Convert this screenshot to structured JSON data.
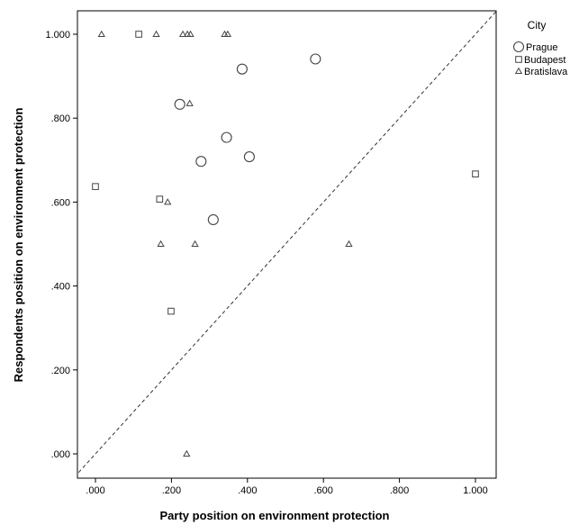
{
  "chart_data": {
    "type": "scatter",
    "title": "",
    "xlabel": "Party position on environment protection",
    "ylabel": "Respondents position on environment protection",
    "xlim": [
      -0.04,
      1.05
    ],
    "ylim": [
      -0.05,
      1.06
    ],
    "x_ticks": [
      0,
      0.2,
      0.4,
      0.6,
      0.8,
      1.0
    ],
    "y_ticks": [
      0,
      0.2,
      0.4,
      0.6,
      0.8,
      1.0
    ],
    "x_tick_labels": [
      ".000",
      ".200",
      ".400",
      ".600",
      ".800",
      "1.000"
    ],
    "y_tick_labels": [
      ".000",
      ".200",
      ".400",
      ".600",
      ".800",
      "1.000"
    ],
    "grid": false,
    "reference_line": "y = x (dashed diagonal)",
    "legend": {
      "title": "City",
      "position": "top-right",
      "entries": [
        "Prague",
        "Budapest",
        "Bratislava"
      ]
    },
    "series": [
      {
        "name": "Prague",
        "marker": "circle",
        "x": [
          0.579,
          0.386,
          0.222,
          0.345,
          0.278,
          0.405,
          0.31
        ],
        "y": [
          0.941,
          0.917,
          0.833,
          0.754,
          0.697,
          0.708,
          0.558
        ]
      },
      {
        "name": "Budapest",
        "marker": "square",
        "x": [
          0.114,
          0.0,
          0.169,
          0.199,
          1.0
        ],
        "y": [
          1.0,
          0.637,
          0.607,
          0.34,
          0.667
        ]
      },
      {
        "name": "Bratislava",
        "marker": "triangle",
        "x": [
          0.016,
          0.16,
          0.23,
          0.242,
          0.25,
          0.34,
          0.348,
          0.248,
          0.19,
          0.172,
          0.262,
          0.667,
          0.24
        ],
        "y": [
          1.0,
          1.0,
          1.0,
          1.0,
          1.0,
          1.0,
          1.0,
          0.835,
          0.6,
          0.5,
          0.5,
          0.5,
          0.0
        ]
      }
    ]
  }
}
